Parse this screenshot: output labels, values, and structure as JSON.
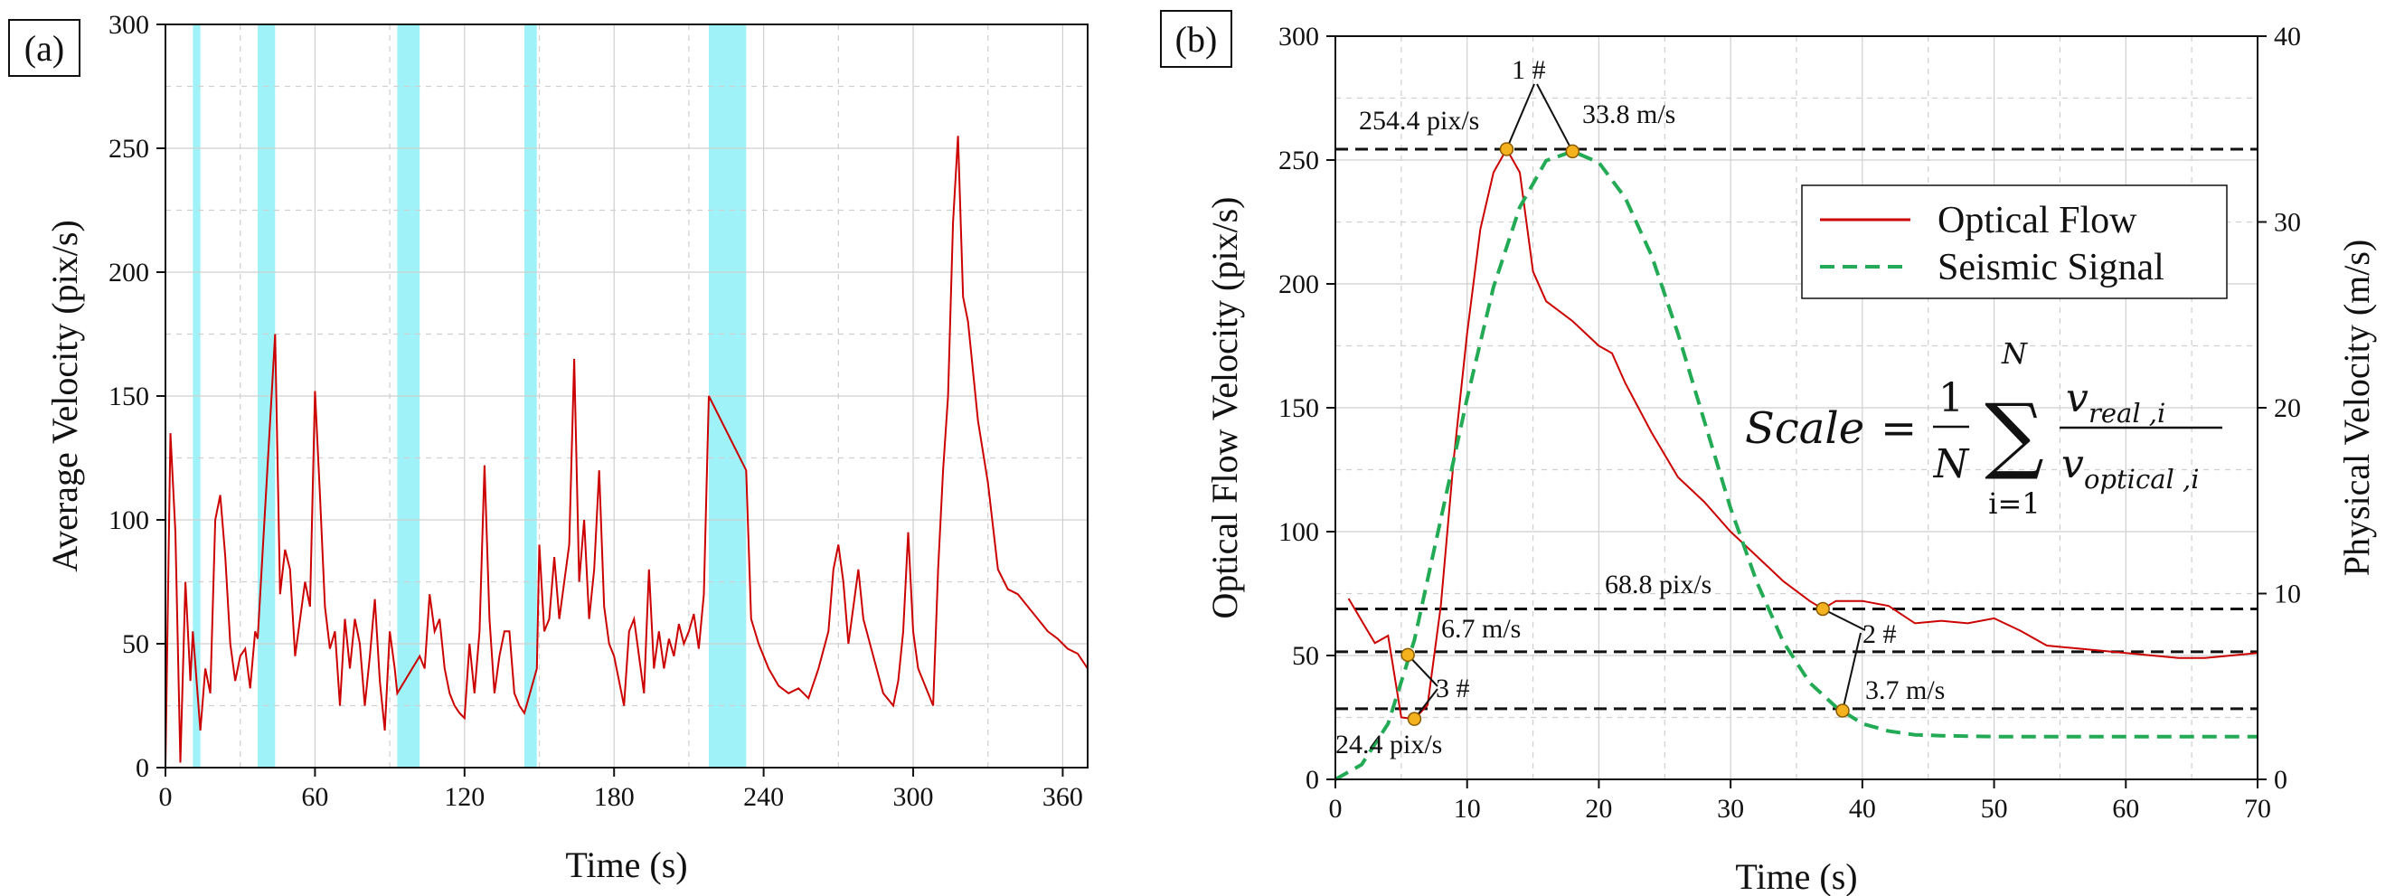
{
  "chart_data": [
    {
      "type": "line",
      "panel_label": "(a)",
      "xlabel": "Time (s)",
      "ylabel": "Average Velocity (pix/s)",
      "xlim": [
        0,
        370
      ],
      "ylim": [
        0,
        300
      ],
      "x_ticks": [
        "0",
        "60",
        "120",
        "180",
        "240",
        "300",
        "360"
      ],
      "y_ticks": [
        "0",
        "50",
        "100",
        "150",
        "200",
        "250",
        "300"
      ],
      "grid": true,
      "colors": {
        "series": "#cc0000",
        "bands": "#9ff3f8"
      },
      "highlight_bands": [
        [
          11,
          14
        ],
        [
          37,
          44
        ],
        [
          93,
          102
        ],
        [
          144,
          149
        ],
        [
          218,
          233
        ]
      ],
      "series": [
        {
          "x": [
            0,
            2,
            4,
            6,
            8,
            10,
            11,
            14,
            16,
            18,
            20,
            22,
            24,
            26,
            28,
            30,
            32,
            34,
            36,
            37,
            44,
            46,
            48,
            50,
            52,
            54,
            56,
            58,
            60,
            62,
            64,
            66,
            68,
            70,
            72,
            74,
            76,
            78,
            80,
            82,
            84,
            86,
            88,
            90,
            92,
            93,
            102,
            104,
            106,
            108,
            110,
            112,
            114,
            116,
            118,
            120,
            122,
            124,
            126,
            128,
            130,
            132,
            134,
            136,
            138,
            140,
            142,
            144,
            149,
            150,
            152,
            154,
            156,
            158,
            160,
            162,
            164,
            166,
            168,
            170,
            172,
            174,
            176,
            178,
            180,
            182,
            184,
            186,
            188,
            190,
            192,
            194,
            196,
            198,
            200,
            202,
            204,
            206,
            208,
            210,
            212,
            214,
            216,
            218,
            233,
            235,
            238,
            242,
            246,
            250,
            254,
            258,
            262,
            266,
            268,
            270,
            272,
            274,
            276,
            278,
            280,
            284,
            288,
            292,
            294,
            296,
            298,
            300,
            302,
            304,
            306,
            308,
            310,
            312,
            314,
            316,
            318,
            320,
            322,
            326,
            330,
            334,
            338,
            342,
            346,
            350,
            354,
            358,
            362,
            366,
            370
          ],
          "values": [
            0,
            135,
            95,
            2,
            75,
            35,
            55,
            15,
            40,
            30,
            100,
            110,
            85,
            50,
            35,
            45,
            48,
            32,
            55,
            52,
            175,
            70,
            88,
            80,
            45,
            60,
            75,
            65,
            152,
            110,
            65,
            48,
            55,
            25,
            60,
            40,
            60,
            50,
            25,
            45,
            68,
            35,
            15,
            55,
            40,
            30,
            45,
            40,
            70,
            55,
            60,
            40,
            30,
            25,
            22,
            20,
            50,
            30,
            55,
            122,
            60,
            30,
            45,
            55,
            55,
            30,
            25,
            22,
            40,
            90,
            55,
            60,
            85,
            60,
            75,
            90,
            165,
            75,
            100,
            60,
            80,
            120,
            65,
            50,
            45,
            35,
            25,
            55,
            60,
            45,
            30,
            80,
            40,
            55,
            40,
            52,
            45,
            58,
            50,
            55,
            62,
            48,
            70,
            150,
            120,
            60,
            50,
            40,
            33,
            30,
            32,
            28,
            40,
            55,
            80,
            90,
            75,
            50,
            65,
            80,
            60,
            45,
            30,
            25,
            35,
            55,
            95,
            55,
            40,
            35,
            30,
            25,
            80,
            120,
            150,
            220,
            255,
            190,
            180,
            140,
            115,
            80,
            72,
            70,
            65,
            60,
            55,
            52,
            48,
            46,
            40
          ]
        }
      ]
    },
    {
      "type": "line",
      "panel_label": "(b)",
      "xlabel": "Time (s)",
      "ylabel": "Optical Flow Velocity (pix/s)",
      "ylabel_right": "Physical Velocity (m/s)",
      "xlim": [
        0,
        70
      ],
      "ylim": [
        0,
        300
      ],
      "ylim_right": [
        0,
        40
      ],
      "x_ticks": [
        "0",
        "10",
        "20",
        "30",
        "40",
        "50",
        "60",
        "70"
      ],
      "y_ticks": [
        "0",
        "50",
        "100",
        "150",
        "200",
        "250",
        "300"
      ],
      "y_ticks_right": [
        "0",
        "10",
        "20",
        "30",
        "40"
      ],
      "grid": true,
      "legend": {
        "position": "top-right",
        "entries": [
          "Optical Flow",
          "Seismic Signal"
        ]
      },
      "colors": {
        "optical": "#cc0000",
        "seismic": "#22aa55",
        "reference": "#111111",
        "marker": "#f5b21f"
      },
      "series": [
        {
          "name": "Optical Flow",
          "style": "solid",
          "x": [
            1,
            3,
            4,
            5,
            6,
            7,
            8,
            9,
            10,
            11,
            12,
            13,
            14,
            15,
            16,
            18,
            20,
            21,
            22,
            24,
            26,
            28,
            30,
            32,
            34,
            36,
            37,
            38,
            40,
            42,
            44,
            46,
            48,
            50,
            52,
            54,
            56,
            58,
            60,
            62,
            64,
            66,
            68,
            70
          ],
          "values": [
            73,
            55,
            58,
            25,
            24.4,
            30,
            70,
            130,
            180,
            222,
            245,
            254.4,
            245,
            205,
            193,
            185,
            175,
            172,
            160,
            140,
            122,
            112,
            100,
            90,
            80,
            72,
            68.8,
            72,
            72,
            70,
            63,
            64,
            63,
            65,
            60,
            54,
            53,
            52,
            51,
            50,
            49,
            49,
            50,
            51
          ]
        },
        {
          "name": "Seismic Signal",
          "style": "dashed",
          "axis": "right",
          "x": [
            0,
            2,
            4,
            6,
            8,
            10,
            12,
            14,
            16,
            18,
            20,
            22,
            24,
            26,
            28,
            30,
            32,
            34,
            36,
            38,
            40,
            42,
            44,
            46,
            50,
            55,
            60,
            65,
            70
          ],
          "values": [
            0,
            0.8,
            3,
            7.5,
            14,
            20.5,
            26.5,
            30.8,
            33.3,
            33.8,
            33.2,
            31.3,
            28.2,
            24,
            19.3,
            14.6,
            10.6,
            7.4,
            5.2,
            3.9,
            3,
            2.6,
            2.4,
            2.35,
            2.3,
            2.3,
            2.3,
            2.3,
            2.3
          ]
        }
      ],
      "reference_lines": [
        254.4,
        68.8,
        51.5,
        28.5
      ],
      "points": [
        {
          "id": "1 #",
          "optical": {
            "x": 13,
            "y": 254.4,
            "label": "254.4 pix/s"
          },
          "seismic": {
            "x": 18,
            "y": 33.8,
            "label": "33.8 m/s"
          }
        },
        {
          "id": "2 #",
          "optical": {
            "x": 37,
            "y": 68.8,
            "label": "68.8 pix/s"
          },
          "seismic": {
            "x": 38.5,
            "y": 3.7,
            "label": "3.7 m/s"
          }
        },
        {
          "id": "3 #",
          "optical": {
            "x": 6,
            "y": 24.4,
            "label": "24.4 pix/s"
          },
          "seismic": {
            "x": 5.5,
            "y": 6.7,
            "label": "6.7 m/s"
          }
        }
      ],
      "formula": {
        "lhs": "Scale",
        "equals": "=",
        "fraction_numerator": "1",
        "fraction_denominator": "N",
        "sum_symbol": "∑",
        "sum_upper": "N",
        "sum_lower": "i=1",
        "numerator_var": "v",
        "numerator_sub": "real ,i",
        "denominator_var": "v",
        "denominator_sub": "optical ,i"
      }
    }
  ]
}
